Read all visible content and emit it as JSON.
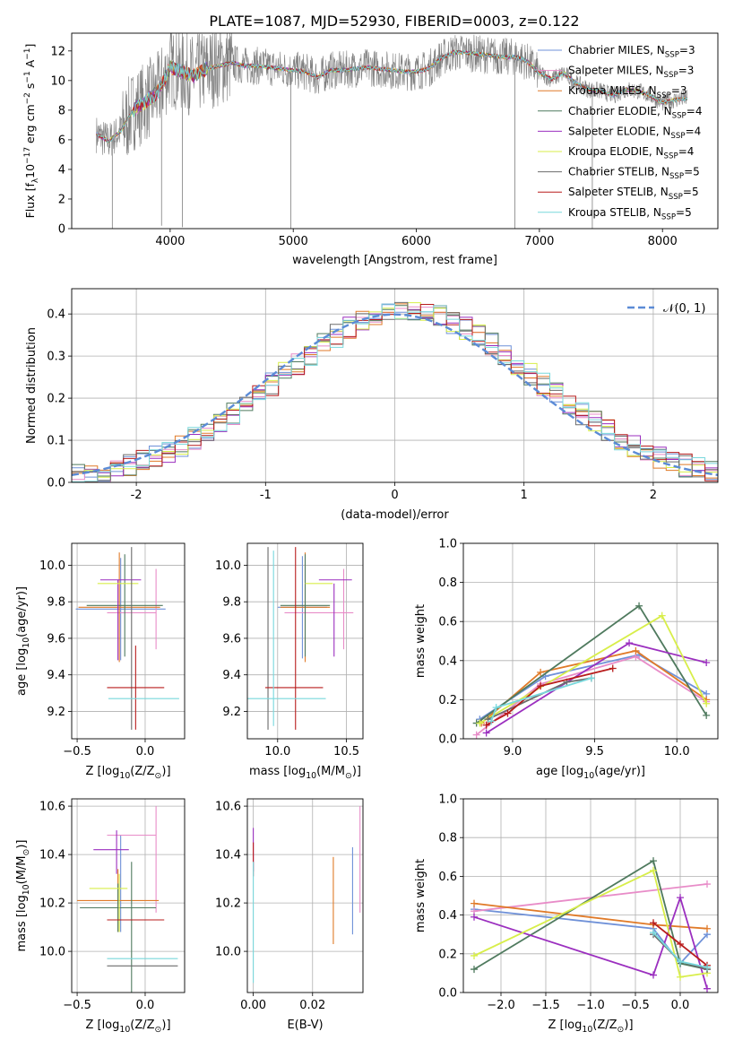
{
  "title": "PLATE=1087, MJD=52930, FIBERID=0003, z=0.122",
  "colors": {
    "Chabrier MILES": "#6f91d8",
    "Salpeter MILES": "#e88cc8",
    "Kroupa MILES": "#e07a28",
    "Chabrier ELODIE": "#4f7a5e",
    "Salpeter ELODIE": "#9b2fbf",
    "Kroupa ELODIE": "#d8ee4a",
    "Chabrier STELIB": "#6b6b6b",
    "Salpeter STELIB": "#b81c1c",
    "Kroupa STELIB": "#78d8dc",
    "gaussian": "#5b8bd6",
    "grid": "#b0b0b0"
  },
  "chart_data": [
    {
      "id": "spectrum",
      "type": "line",
      "title": "PLATE=1087, MJD=52930, FIBERID=0003, z=0.122",
      "xlabel": "wavelength [Angstrom, rest frame]",
      "ylabel_main": "Flux [f",
      "ylabel_sub": "λ",
      "ylabel_rest": "10",
      "ylabel_exp1": "−17",
      "ylabel_tail1": " erg cm",
      "ylabel_exp2": "−2",
      "ylabel_tail2": " s",
      "ylabel_exp3": "−1",
      "ylabel_tail3": " A",
      "ylabel_exp4": "−1",
      "ylabel_end": "]",
      "xlim": [
        3200,
        8450
      ],
      "ylim": [
        0,
        13.2
      ],
      "xticks": [
        4000,
        5000,
        6000,
        7000,
        8000
      ],
      "yticks": [
        0,
        2,
        4,
        6,
        8,
        10,
        12
      ],
      "grid": false,
      "legend_position": "top-right",
      "legend": [
        {
          "name": "Chabrier MILES",
          "label": "Chabrier MILES, N",
          "sub": "SSP",
          "tail": "=3"
        },
        {
          "name": "Salpeter MILES",
          "label": "Salpeter MILES, N",
          "sub": "SSP",
          "tail": "=3"
        },
        {
          "name": "Kroupa MILES",
          "label": "Kroupa MILES, N",
          "sub": "SSP",
          "tail": "=3"
        },
        {
          "name": "Chabrier ELODIE",
          "label": "Chabrier ELODIE, N",
          "sub": "SSP",
          "tail": "=4"
        },
        {
          "name": "Salpeter ELODIE",
          "label": "Salpeter ELODIE, N",
          "sub": "SSP",
          "tail": "=4"
        },
        {
          "name": "Kroupa ELODIE",
          "label": "Kroupa ELODIE, N",
          "sub": "SSP",
          "tail": "=4"
        },
        {
          "name": "Chabrier STELIB",
          "label": "Chabrier STELIB, N",
          "sub": "SSP",
          "tail": "=5"
        },
        {
          "name": "Salpeter STELIB",
          "label": "Salpeter STELIB, N",
          "sub": "SSP",
          "tail": "=5"
        },
        {
          "name": "Kroupa STELIB",
          "label": "Kroupa STELIB, N",
          "sub": "SSP",
          "tail": "=5"
        }
      ],
      "continuum": {
        "wavelength": [
          3400,
          3500,
          3600,
          3700,
          3800,
          3900,
          4000,
          4100,
          4200,
          4300,
          4400,
          4500,
          4600,
          4700,
          4800,
          4900,
          5000,
          5100,
          5200,
          5300,
          5400,
          5500,
          5600,
          5700,
          5800,
          5900,
          6000,
          6100,
          6200,
          6300,
          6400,
          6500,
          6600,
          6700,
          6800,
          6900,
          7000,
          7100,
          7200,
          7300,
          7400,
          7500,
          7600,
          7700,
          7800,
          7900,
          8000,
          8100,
          8200
        ],
        "flux": [
          6.4,
          5.9,
          6.6,
          8.0,
          8.6,
          9.2,
          10.9,
          10.6,
          10.3,
          10.8,
          11.0,
          11.2,
          11.0,
          11.0,
          10.9,
          10.8,
          10.7,
          10.6,
          10.2,
          10.7,
          10.7,
          10.8,
          10.9,
          10.8,
          10.7,
          10.6,
          10.6,
          10.8,
          11.5,
          11.9,
          11.9,
          11.8,
          11.7,
          11.6,
          11.6,
          11.3,
          10.5,
          10.1,
          10.5,
          9.8,
          9.4,
          9.3,
          9.0,
          9.4,
          9.3,
          9.0,
          8.5,
          8.7,
          8.8
        ]
      },
      "spike_dips": [
        {
          "wavelength": 3530,
          "flux": 0
        },
        {
          "wavelength": 3930,
          "flux": 0.2
        },
        {
          "wavelength": 4100,
          "flux": 0.1
        },
        {
          "wavelength": 4980,
          "flux": 0
        },
        {
          "wavelength": 6800,
          "flux": 0
        },
        {
          "wavelength": 7430,
          "flux": 0
        }
      ]
    },
    {
      "id": "residuals",
      "type": "histogram",
      "xlabel": "(data-model)/error",
      "ylabel": "Normed distribution",
      "xlim": [
        -2.5,
        2.5
      ],
      "ylim": [
        0,
        0.46
      ],
      "xticks": [
        -2,
        -1,
        0,
        1,
        2
      ],
      "yticks": [
        0.0,
        0.1,
        0.2,
        0.3,
        0.4
      ],
      "grid": true,
      "legend": [
        {
          "label": "𝒩(0, 1)"
        }
      ],
      "legend_position": "top-right",
      "bin_width": 0.1
    },
    {
      "id": "age_vs_Z",
      "type": "errorbar",
      "xlabel": "Z [log",
      "xlabel_sub": "10",
      "xlabel_tail": "(Z/Z",
      "xlabel_sub2": "⊙",
      "xlabel_end": ")]",
      "ylabel": "age  [log",
      "ylabel_sub": "10",
      "ylabel_tail": "(age/yr)]",
      "xlim": [
        -0.54,
        0.29
      ],
      "ylim": [
        9.05,
        10.12
      ],
      "xticks": [
        -0.5,
        0.0
      ],
      "yticks": [
        9.2,
        9.4,
        9.6,
        9.8,
        10.0
      ],
      "grid": true,
      "points": [
        {
          "series": "Chabrier MILES",
          "x": -0.18,
          "xerr": 0.33,
          "y": 9.76,
          "yerr": 0.28
        },
        {
          "series": "Salpeter MILES",
          "x": 0.08,
          "xerr": 0.0,
          "y": 9.76,
          "yerr": 0.22
        },
        {
          "series": "Salpeter MILES",
          "x": -0.1,
          "xerr": 0.18,
          "y": 9.74,
          "yerr": 0.0
        },
        {
          "series": "Kroupa MILES",
          "x": -0.19,
          "xerr": 0.3,
          "y": 9.77,
          "yerr": 0.3
        },
        {
          "series": "Chabrier ELODIE",
          "x": -0.15,
          "xerr": 0.28,
          "y": 9.78,
          "yerr": 0.28
        },
        {
          "series": "Salpeter ELODIE",
          "x": -0.18,
          "xerr": 0.15,
          "y": 9.92,
          "yerr": 0.0
        },
        {
          "series": "Salpeter ELODIE",
          "x": -0.2,
          "xerr": 0.0,
          "y": 9.7,
          "yerr": 0.22
        },
        {
          "series": "Kroupa ELODIE",
          "x": -0.2,
          "xerr": 0.15,
          "y": 9.9,
          "yerr": 0.0
        },
        {
          "series": "Chabrier STELIB",
          "x": -0.1,
          "xerr": 0.0,
          "y": 9.6,
          "yerr": 0.5
        },
        {
          "series": "Salpeter STELIB",
          "x": -0.07,
          "xerr": 0.21,
          "y": 9.33,
          "yerr": 0.23
        },
        {
          "series": "Kroupa STELIB",
          "x": -0.01,
          "xerr": 0.26,
          "y": 9.27,
          "yerr": 0.0
        }
      ]
    },
    {
      "id": "age_vs_mass",
      "type": "errorbar",
      "xlabel": "mass [log",
      "xlabel_sub": "10",
      "xlabel_tail": "(M/M",
      "xlabel_sub2": "⊙",
      "xlabel_end": ")]",
      "xlim": [
        9.78,
        10.62
      ],
      "ylim": [
        9.05,
        10.12
      ],
      "xticks": [
        10.0,
        10.5
      ],
      "yticks": [
        9.2,
        9.4,
        9.6,
        9.8,
        10.0
      ],
      "grid": true,
      "points": [
        {
          "series": "Chabrier MILES",
          "x": 10.18,
          "xerr": 0.18,
          "y": 9.77,
          "yerr": 0.28
        },
        {
          "series": "Salpeter MILES",
          "x": 10.48,
          "xerr": 0.0,
          "y": 9.76,
          "yerr": 0.22
        },
        {
          "series": "Salpeter MILES",
          "x": 10.3,
          "xerr": 0.25,
          "y": 9.74,
          "yerr": 0.0
        },
        {
          "series": "Kroupa MILES",
          "x": 10.2,
          "xerr": 0.18,
          "y": 9.77,
          "yerr": 0.3
        },
        {
          "series": "Chabrier ELODIE",
          "x": 10.2,
          "xerr": 0.18,
          "y": 9.78,
          "yerr": 0.28
        },
        {
          "series": "Salpeter ELODIE",
          "x": 10.42,
          "xerr": 0.12,
          "y": 9.92,
          "yerr": 0.0
        },
        {
          "series": "Salpeter ELODIE",
          "x": 10.41,
          "xerr": 0.0,
          "y": 9.7,
          "yerr": 0.2
        },
        {
          "series": "Kroupa ELODIE",
          "x": 10.3,
          "xerr": 0.1,
          "y": 9.9,
          "yerr": 0.0
        },
        {
          "series": "Chabrier STELIB",
          "x": 9.93,
          "xerr": 0.0,
          "y": 9.6,
          "yerr": 0.5
        },
        {
          "series": "Salpeter STELIB",
          "x": 10.12,
          "xerr": 0.21,
          "y": 9.33,
          "yerr": 0.0
        },
        {
          "series": "Salpeter STELIB",
          "x": 10.13,
          "xerr": 0.0,
          "y": 9.6,
          "yerr": 0.5
        },
        {
          "series": "Kroupa STELIB",
          "x": 9.95,
          "xerr": 0.4,
          "y": 9.27,
          "yerr": 0.0
        },
        {
          "series": "Kroupa STELIB",
          "x": 9.97,
          "xerr": 0.0,
          "y": 9.6,
          "yerr": 0.48
        }
      ]
    },
    {
      "id": "weight_vs_age",
      "type": "line",
      "xlabel": "age  [log",
      "xlabel_sub": "10",
      "xlabel_tail": "(age/yr)]",
      "ylabel": "mass weight",
      "xlim": [
        8.7,
        10.25
      ],
      "ylim": [
        0,
        1.0
      ],
      "xticks": [
        9.0,
        9.5,
        10.0
      ],
      "yticks": [
        0.0,
        0.2,
        0.4,
        0.6,
        0.8,
        1.0
      ],
      "grid": true,
      "series": [
        {
          "name": "Chabrier MILES",
          "x": [
            8.8,
            9.2,
            9.77,
            10.18
          ],
          "y": [
            0.1,
            0.32,
            0.43,
            0.23
          ]
        },
        {
          "name": "Salpeter MILES",
          "x": [
            8.78,
            9.17,
            9.75,
            10.18
          ],
          "y": [
            0.02,
            0.28,
            0.42,
            0.19
          ]
        },
        {
          "name": "Kroupa MILES",
          "x": [
            8.81,
            9.17,
            9.75,
            10.18
          ],
          "y": [
            0.08,
            0.34,
            0.45,
            0.2
          ]
        },
        {
          "name": "Chabrier ELODIE",
          "x": [
            8.78,
            9.77,
            10.18
          ],
          "y": [
            0.08,
            0.68,
            0.12
          ]
        },
        {
          "name": "Salpeter ELODIE",
          "x": [
            8.84,
            9.71,
            10.18
          ],
          "y": [
            0.03,
            0.49,
            0.39
          ]
        },
        {
          "name": "Kroupa ELODIE",
          "x": [
            8.8,
            9.91,
            10.18
          ],
          "y": [
            0.08,
            0.63,
            0.18
          ]
        },
        {
          "name": "Chabrier STELIB",
          "x": [
            8.85,
            9.33,
            9.48
          ],
          "y": [
            0.1,
            0.29,
            0.31
          ]
        },
        {
          "name": "Salpeter STELIB",
          "x": [
            8.84,
            8.97,
            9.17,
            9.61
          ],
          "y": [
            0.07,
            0.13,
            0.27,
            0.36
          ]
        },
        {
          "name": "Kroupa STELIB",
          "x": [
            8.87,
            8.9,
            9.48
          ],
          "y": [
            0.09,
            0.16,
            0.31
          ]
        }
      ]
    },
    {
      "id": "mass_vs_Z",
      "type": "errorbar",
      "xlabel": "Z [log",
      "xlabel_sub": "10",
      "xlabel_tail": "(Z/Z",
      "xlabel_sub2": "⊙",
      "xlabel_end": ")]",
      "ylabel": "mass [log",
      "ylabel_sub": "10",
      "ylabel_tail": "(M/M",
      "ylabel_sub2": "⊙",
      "ylabel_end": ")]",
      "xlim": [
        -0.54,
        0.29
      ],
      "ylim": [
        9.83,
        10.63
      ],
      "xticks": [
        -0.5,
        0.0
      ],
      "yticks": [
        10.0,
        10.2,
        10.4,
        10.6
      ],
      "grid": true,
      "points": [
        {
          "series": "Chabrier MILES",
          "x": -0.18,
          "xerr": 0.0,
          "y": 10.28,
          "yerr": 0.2
        },
        {
          "series": "Salpeter MILES",
          "x": 0.08,
          "xerr": 0.0,
          "y": 10.38,
          "yerr": 0.22
        },
        {
          "series": "Salpeter MILES",
          "x": -0.1,
          "xerr": 0.18,
          "y": 10.48,
          "yerr": 0.0
        },
        {
          "series": "Kroupa MILES",
          "x": -0.2,
          "xerr": 0.3,
          "y": 10.21,
          "yerr": 0.13
        },
        {
          "series": "Chabrier ELODIE",
          "x": -0.2,
          "xerr": 0.28,
          "y": 10.18,
          "yerr": 0.1
        },
        {
          "series": "Chabrier ELODIE",
          "x": -0.1,
          "xerr": 0.0,
          "y": 10.1,
          "yerr": 0.27
        },
        {
          "series": "Salpeter ELODIE",
          "x": -0.21,
          "xerr": 0.0,
          "y": 10.41,
          "yerr": 0.09
        },
        {
          "series": "Salpeter ELODIE",
          "x": -0.25,
          "xerr": 0.13,
          "y": 10.42,
          "yerr": 0.0
        },
        {
          "series": "Kroupa ELODIE",
          "x": -0.27,
          "xerr": 0.14,
          "y": 10.26,
          "yerr": 0.0
        },
        {
          "series": "Kroupa ELODIE",
          "x": -0.19,
          "xerr": 0.0,
          "y": 10.2,
          "yerr": 0.12
        },
        {
          "series": "Chabrier STELIB",
          "x": -0.02,
          "xerr": 0.26,
          "y": 9.94,
          "yerr": 0.0
        },
        {
          "series": "Salpeter STELIB",
          "x": -0.07,
          "xerr": 0.21,
          "y": 10.13,
          "yerr": 0.0
        },
        {
          "series": "Kroupa STELIB",
          "x": -0.02,
          "xerr": 0.26,
          "y": 9.97,
          "yerr": 0.0
        }
      ]
    },
    {
      "id": "mass_vs_ebv",
      "type": "errorbar",
      "xlabel": "E(B-V)",
      "xlim": [
        -0.002,
        0.037
      ],
      "ylim": [
        9.83,
        10.63
      ],
      "xticks": [
        0.0,
        0.02
      ],
      "yticks": [
        10.0,
        10.2,
        10.4,
        10.6
      ],
      "grid": true,
      "points": [
        {
          "series": "Salpeter MILES",
          "x": 0.036,
          "xerr": 0.0,
          "y": 10.38,
          "yerr": 0.22
        },
        {
          "series": "Chabrier MILES",
          "x": 0.0335,
          "xerr": 0.0,
          "y": 10.25,
          "yerr": 0.18
        },
        {
          "series": "Kroupa MILES",
          "x": 0.027,
          "xerr": 0.0,
          "y": 10.21,
          "yerr": 0.18
        },
        {
          "series": "Salpeter ELODIE",
          "x": 0.0,
          "xerr": 0.0,
          "y": 10.42,
          "yerr": 0.09
        },
        {
          "series": "Salpeter STELIB",
          "x": 0.0,
          "xerr": 0.0,
          "y": 10.38,
          "yerr": 0.07
        },
        {
          "series": "Kroupa STELIB",
          "x": 0.0,
          "xerr": 0.0,
          "y": 10.12,
          "yerr": 0.25
        }
      ]
    },
    {
      "id": "weight_vs_Z",
      "type": "line",
      "xlabel": "Z [log",
      "xlabel_sub": "10",
      "xlabel_tail": "(Z/Z",
      "xlabel_sub2": "⊙",
      "xlabel_end": ")]",
      "ylabel": "mass weight",
      "xlim": [
        -2.42,
        0.42
      ],
      "ylim": [
        0,
        1.0
      ],
      "xticks": [
        -2.0,
        -1.5,
        -1.0,
        -0.5,
        0.0
      ],
      "yticks": [
        0.0,
        0.2,
        0.4,
        0.6,
        0.8,
        1.0
      ],
      "grid": true,
      "series": [
        {
          "name": "Chabrier MILES",
          "x": [
            -2.3,
            -0.3,
            0.0,
            0.3
          ],
          "y": [
            0.43,
            0.33,
            0.15,
            0.3
          ]
        },
        {
          "name": "Salpeter MILES",
          "x": [
            -2.3,
            0.3
          ],
          "y": [
            0.42,
            0.56
          ]
        },
        {
          "name": "Kroupa MILES",
          "x": [
            -2.3,
            -0.3,
            0.3
          ],
          "y": [
            0.46,
            0.35,
            0.33
          ]
        },
        {
          "name": "Chabrier ELODIE",
          "x": [
            -2.3,
            -0.3,
            0.0,
            0.3
          ],
          "y": [
            0.12,
            0.68,
            0.15,
            0.12
          ]
        },
        {
          "name": "Salpeter ELODIE",
          "x": [
            -2.3,
            -0.3,
            0.0,
            0.3
          ],
          "y": [
            0.39,
            0.09,
            0.49,
            0.02
          ]
        },
        {
          "name": "Kroupa ELODIE",
          "x": [
            -2.3,
            -0.3,
            0.0,
            0.3
          ],
          "y": [
            0.19,
            0.63,
            0.08,
            0.1
          ]
        },
        {
          "name": "Chabrier STELIB",
          "x": [
            -0.3,
            0.0,
            0.3
          ],
          "y": [
            0.3,
            0.16,
            0.12
          ]
        },
        {
          "name": "Salpeter STELIB",
          "x": [
            -0.3,
            0.0,
            0.3
          ],
          "y": [
            0.36,
            0.25,
            0.14
          ]
        },
        {
          "name": "Kroupa STELIB",
          "x": [
            -0.3,
            0.0,
            0.3
          ],
          "y": [
            0.31,
            0.16,
            0.13
          ]
        }
      ]
    }
  ]
}
